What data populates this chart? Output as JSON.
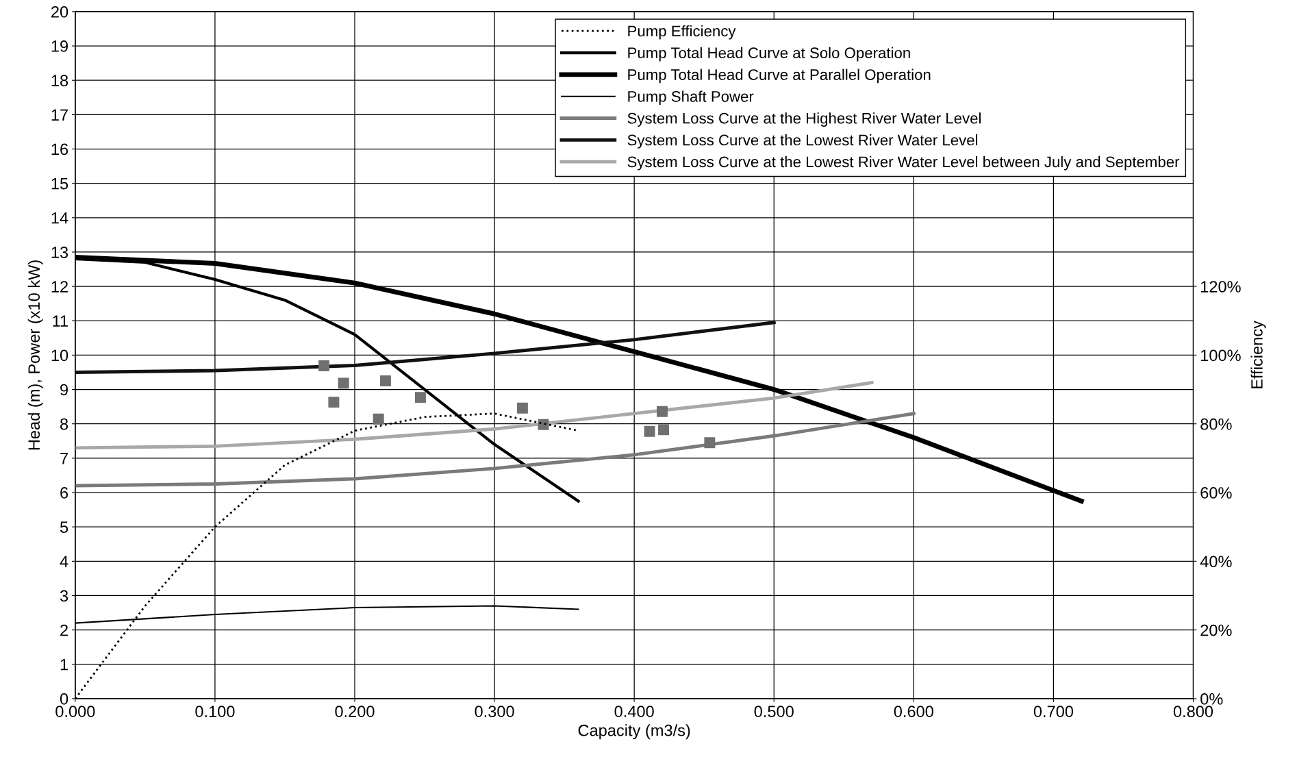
{
  "chart_data": {
    "type": "line",
    "xlabel": "Capacity (m3/s)",
    "ylabel": "Head (m), Power (x10 kW)",
    "y2label": "Efficiency",
    "xlim": [
      0,
      0.8
    ],
    "ylim": [
      0,
      20
    ],
    "y2lim": [
      0,
      200
    ],
    "grid": true,
    "legend": "top right",
    "xticks": [
      {
        "value": 0,
        "label": "0.000"
      },
      {
        "value": 0.1,
        "label": "0.100"
      },
      {
        "value": 0.2,
        "label": "0.200"
      },
      {
        "value": 0.3,
        "label": "0.300"
      },
      {
        "value": 0.4,
        "label": "0.400"
      },
      {
        "value": 0.5,
        "label": "0.500"
      },
      {
        "value": 0.6,
        "label": "0.600"
      },
      {
        "value": 0.7,
        "label": "0.700"
      },
      {
        "value": 0.8,
        "label": "0.800"
      }
    ],
    "yticks": [
      0,
      1,
      2,
      3,
      4,
      5,
      6,
      7,
      8,
      9,
      10,
      11,
      12,
      13,
      14,
      15,
      16,
      17,
      18,
      19,
      20
    ],
    "y2ticks": [
      {
        "value": 0,
        "label": "0%"
      },
      {
        "value": 20,
        "label": "20%"
      },
      {
        "value": 40,
        "label": "40%"
      },
      {
        "value": 60,
        "label": "60%"
      },
      {
        "value": 80,
        "label": "80%"
      },
      {
        "value": 100,
        "label": "100%"
      },
      {
        "value": 120,
        "label": "120%"
      }
    ],
    "series": [
      {
        "name": "Pump Efficiency",
        "axis": "y2",
        "line_style": "dotted",
        "color": "#000000",
        "x": [
          0,
          0.05,
          0.1,
          0.15,
          0.2,
          0.25,
          0.3,
          0.36
        ],
        "values": [
          0,
          27,
          50,
          68,
          78,
          82,
          83,
          78
        ]
      },
      {
        "name": "Pump Total Head Curve at Solo Operation",
        "line_style": "solid",
        "color": "#000000",
        "x": [
          0,
          0.05,
          0.1,
          0.15,
          0.2,
          0.25,
          0.3,
          0.36
        ],
        "values": [
          12.8,
          12.7,
          12.2,
          11.6,
          10.6,
          9.0,
          7.4,
          5.75
        ]
      },
      {
        "name": "Pump Total Head Curve at Parallel Operation",
        "line_style": "solid",
        "color": "#000000",
        "x": [
          0,
          0.1,
          0.2,
          0.3,
          0.4,
          0.5,
          0.6,
          0.72
        ],
        "values": [
          12.85,
          12.67,
          12.1,
          11.2,
          10.1,
          9.0,
          7.6,
          5.75
        ]
      },
      {
        "name": "Pump Shaft Power",
        "line_style": "solid",
        "color": "#000000",
        "x": [
          0,
          0.1,
          0.2,
          0.3,
          0.36
        ],
        "values": [
          2.2,
          2.45,
          2.65,
          2.7,
          2.6
        ]
      },
      {
        "name": "System Loss Curve at the Highest River Water Level",
        "line_style": "solid",
        "color": "#7a7a7a",
        "x": [
          0,
          0.1,
          0.2,
          0.3,
          0.4,
          0.5,
          0.6
        ],
        "values": [
          6.2,
          6.25,
          6.4,
          6.7,
          7.1,
          7.65,
          8.3
        ]
      },
      {
        "name": "System Loss Curve at the Lowest River Water Level",
        "line_style": "solid",
        "color": "#111111",
        "x": [
          0,
          0.1,
          0.2,
          0.3,
          0.4,
          0.5
        ],
        "values": [
          9.5,
          9.55,
          9.7,
          10.05,
          10.45,
          10.95
        ]
      },
      {
        "name": "System Loss Curve at the Lowest River Water Level between July and September",
        "line_style": "solid",
        "color": "#a8a8a8",
        "x": [
          0,
          0.1,
          0.2,
          0.3,
          0.4,
          0.5,
          0.57
        ],
        "values": [
          7.3,
          7.35,
          7.55,
          7.85,
          8.3,
          8.75,
          9.2
        ]
      },
      {
        "type": "scatter",
        "marker": "square",
        "color": "#707070",
        "x": [
          0.178,
          0.185,
          0.192,
          0.217,
          0.222,
          0.247,
          0.32,
          0.335,
          0.411,
          0.421,
          0.42,
          0.454
        ],
        "values": [
          9.69,
          8.63,
          9.18,
          8.14,
          9.25,
          8.77,
          8.46,
          7.98,
          7.78,
          7.83,
          8.36,
          7.45
        ]
      }
    ]
  }
}
